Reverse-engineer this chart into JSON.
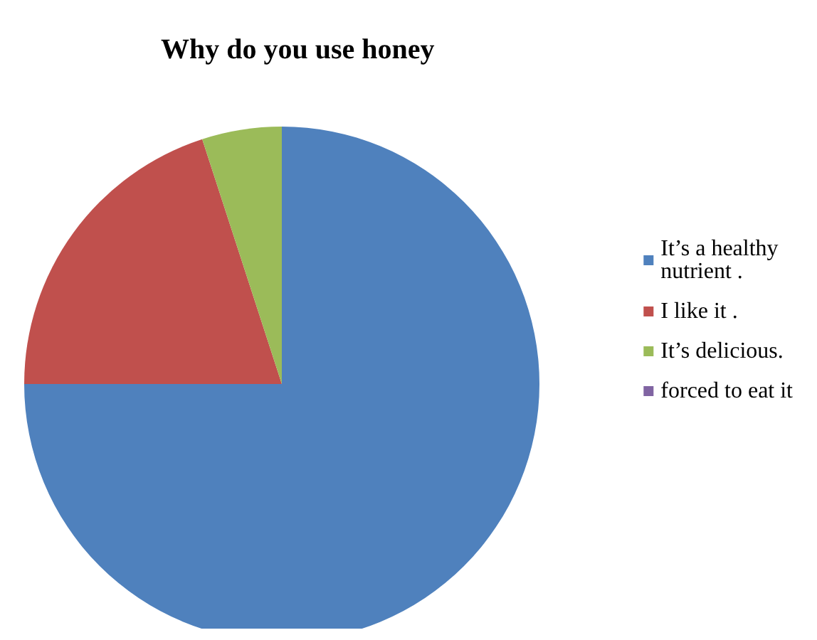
{
  "chart_data": {
    "type": "pie",
    "title": "Why do you use honey",
    "categories": [
      "It’s a healthy nutrient .",
      "I like it .",
      "It’s delicious.",
      "forced to eat it"
    ],
    "values": [
      75,
      20,
      5,
      0
    ],
    "colors": [
      "#4f81bd",
      "#c0504d",
      "#9bbb59",
      "#8064a2"
    ],
    "legend": "right"
  }
}
